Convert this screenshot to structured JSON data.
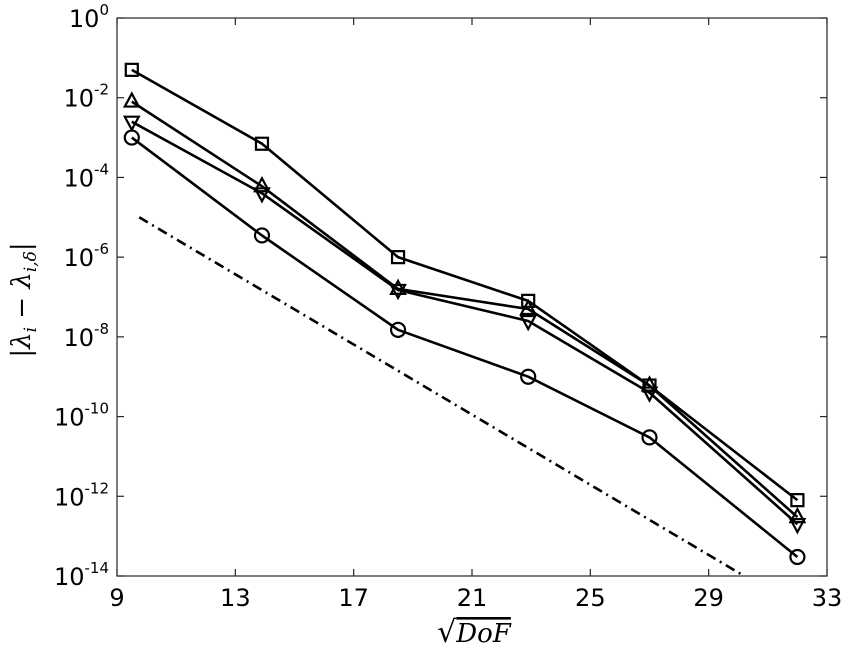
{
  "chart_data": {
    "type": "line",
    "title": "",
    "xlabel": "√DoF",
    "ylabel": "|λ_i − λ_{i,δ}|",
    "x_scale": "linear",
    "y_scale": "log",
    "xlim": [
      9,
      33
    ],
    "ylim": [
      1e-14,
      1
    ],
    "x_ticks": [
      9,
      13,
      17,
      21,
      25,
      29,
      33
    ],
    "y_ticks": [
      {
        "value": 1e-14,
        "base": "10",
        "exp": "-14"
      },
      {
        "value": 1e-12,
        "base": "10",
        "exp": "-12"
      },
      {
        "value": 1e-10,
        "base": "10",
        "exp": "-10"
      },
      {
        "value": 1e-08,
        "base": "10",
        "exp": "-8"
      },
      {
        "value": 1e-06,
        "base": "10",
        "exp": "-6"
      },
      {
        "value": 0.0001,
        "base": "10",
        "exp": "-4"
      },
      {
        "value": 0.01,
        "base": "10",
        "exp": "-2"
      },
      {
        "value": 1,
        "base": "10",
        "exp": "0"
      }
    ],
    "grid": false,
    "legend": "none",
    "x": [
      9.5,
      13.9,
      18.5,
      22.9,
      27.0,
      32.0
    ],
    "series": [
      {
        "marker": "square",
        "values": [
          0.05,
          0.0007,
          1e-06,
          8e-08,
          6e-10,
          8e-13
        ]
      },
      {
        "marker": "triangle-up",
        "values": [
          0.008,
          6e-05,
          1.6e-07,
          5e-08,
          6e-10,
          3e-13
        ]
      },
      {
        "marker": "triangle-down",
        "values": [
          0.0025,
          4e-05,
          1.5e-07,
          2.5e-08,
          4e-10,
          2e-13
        ]
      },
      {
        "marker": "circle",
        "values": [
          0.001,
          3.5e-06,
          1.5e-08,
          1e-09,
          3e-11,
          3e-14
        ]
      }
    ],
    "reference_line": {
      "style": "dash-dot",
      "x": [
        9.75,
        30.2
      ],
      "y": [
        1e-05,
        1e-14
      ]
    },
    "colors": {
      "line": "#000000",
      "axes": "#262626",
      "background": "#ffffff"
    }
  }
}
